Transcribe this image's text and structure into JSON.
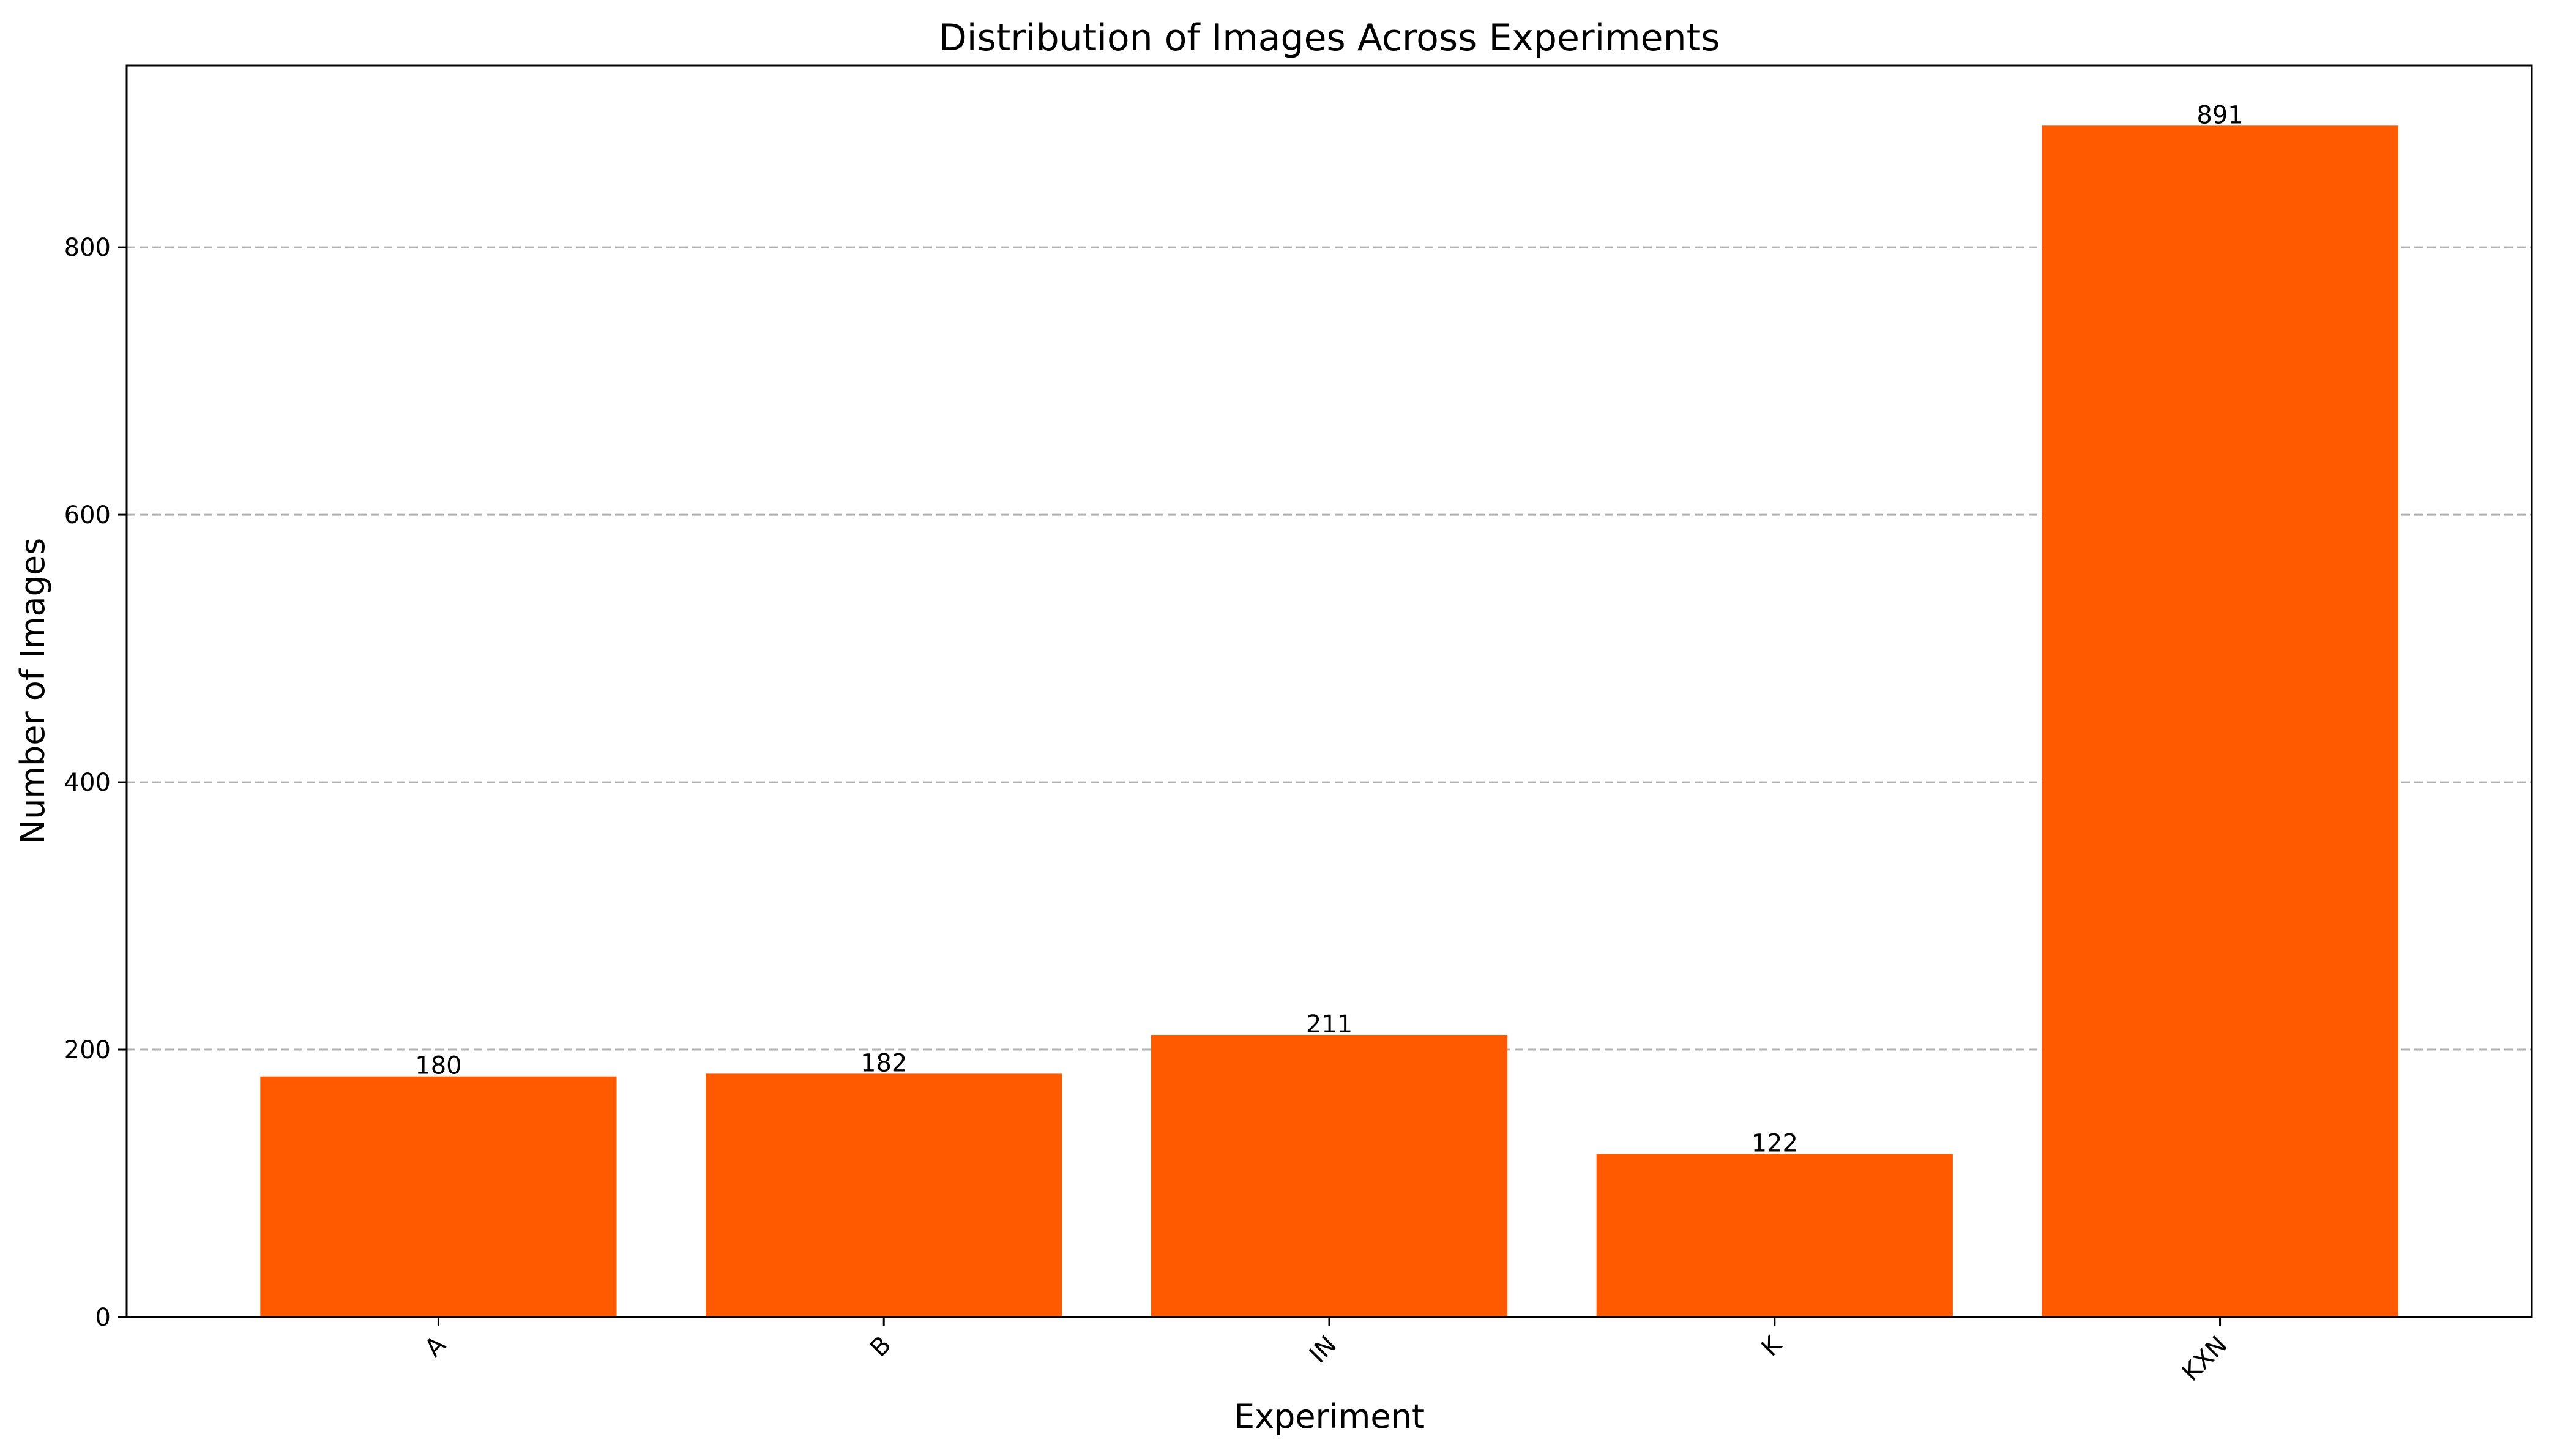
{
  "chart_data": {
    "type": "bar",
    "title": "Distribution of Images Across Experiments",
    "xlabel": "Experiment",
    "ylabel": "Number of Images",
    "categories": [
      "A",
      "B",
      "IN",
      "K",
      "KXN"
    ],
    "values": [
      180,
      182,
      211,
      122,
      891
    ],
    "data_labels": [
      "180",
      "182",
      "211",
      "122",
      "891"
    ],
    "ylim": [
      0,
      936
    ],
    "yticks": [
      0,
      200,
      400,
      600,
      800
    ],
    "bar_color": "#ff5a00",
    "grid": "y-dashed",
    "legend": "none"
  }
}
